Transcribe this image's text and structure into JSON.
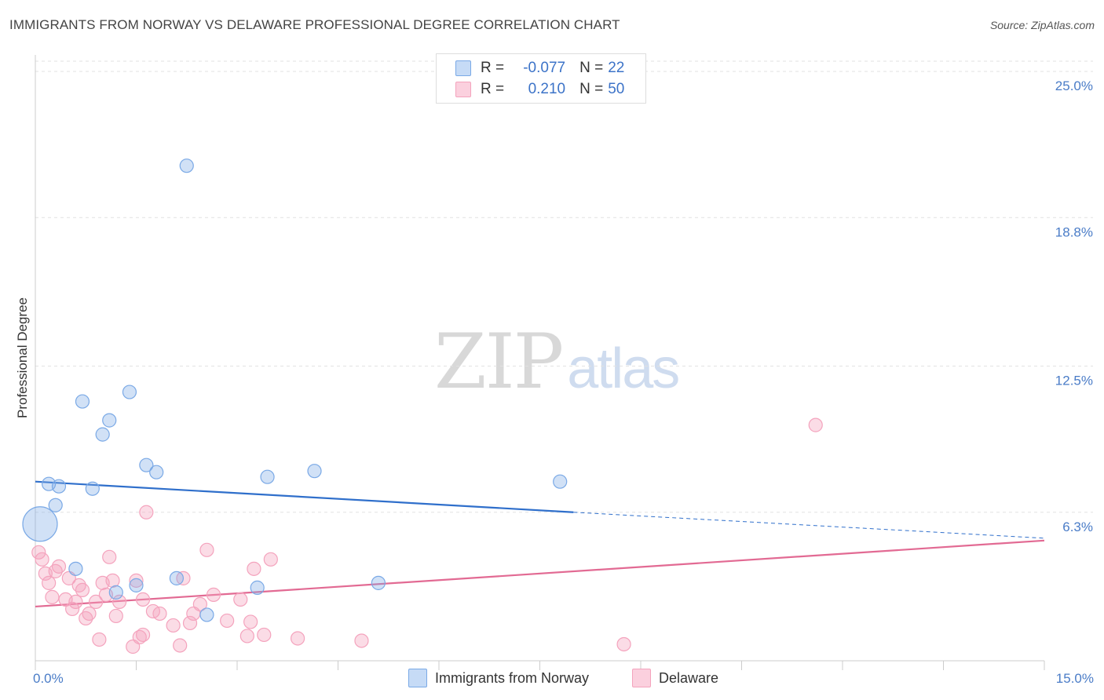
{
  "title": "IMMIGRANTS FROM NORWAY VS DELAWARE PROFESSIONAL DEGREE CORRELATION CHART",
  "source": "Source: ZipAtlas.com",
  "watermark": {
    "zip": "ZIP",
    "atlas": "atlas"
  },
  "legend": {
    "r_label": "R =",
    "n_label": "N =",
    "series": [
      {
        "r": "-0.077",
        "n": "22"
      },
      {
        "r": "0.210",
        "n": "50"
      }
    ]
  },
  "chart_data": {
    "type": "scatter",
    "title": "IMMIGRANTS FROM NORWAY VS DELAWARE PROFESSIONAL DEGREE CORRELATION CHART",
    "xlabel": "",
    "ylabel": "Professional Degree",
    "xlim": [
      0,
      15
    ],
    "ylim": [
      0,
      25.7
    ],
    "x_tick_labels": [
      "0.0%",
      "15.0%"
    ],
    "y_ticks": [
      6.3,
      12.5,
      18.8,
      25.0
    ],
    "y_tick_labels": [
      "6.3%",
      "12.5%",
      "18.8%",
      "25.0%"
    ],
    "grid": true,
    "colors": {
      "norway": "#7aa9e6",
      "norway_line": "#2f6fcb",
      "delaware": "#f4a3bd",
      "delaware_line": "#e26a93"
    },
    "series": [
      {
        "name": "Immigrants from Norway",
        "r": -0.077,
        "n": 22,
        "trend": {
          "x0": 0,
          "y0": 7.6,
          "x1": 8.0,
          "y1": 6.3,
          "dashed_to_x": 15,
          "dashed_to_y": 5.2
        },
        "points": [
          {
            "x": 0.0,
            "y": 5.8,
            "large": true
          },
          {
            "x": 0.2,
            "y": 7.5
          },
          {
            "x": 0.35,
            "y": 7.4
          },
          {
            "x": 0.3,
            "y": 6.6
          },
          {
            "x": 0.6,
            "y": 3.9
          },
          {
            "x": 0.7,
            "y": 11.0
          },
          {
            "x": 0.85,
            "y": 7.3
          },
          {
            "x": 1.0,
            "y": 9.6
          },
          {
            "x": 1.1,
            "y": 10.2
          },
          {
            "x": 1.4,
            "y": 11.4
          },
          {
            "x": 1.65,
            "y": 8.3
          },
          {
            "x": 1.8,
            "y": 8.0
          },
          {
            "x": 1.5,
            "y": 3.2
          },
          {
            "x": 1.2,
            "y": 2.9
          },
          {
            "x": 2.1,
            "y": 3.5
          },
          {
            "x": 2.25,
            "y": 21.0
          },
          {
            "x": 2.55,
            "y": 1.95
          },
          {
            "x": 3.45,
            "y": 7.8
          },
          {
            "x": 3.3,
            "y": 3.1
          },
          {
            "x": 4.15,
            "y": 8.05
          },
          {
            "x": 5.1,
            "y": 3.3
          },
          {
            "x": 7.8,
            "y": 7.6
          }
        ]
      },
      {
        "name": "Delaware",
        "r": 0.21,
        "n": 50,
        "trend": {
          "x0": 0,
          "y0": 2.3,
          "x1": 15,
          "y1": 5.1
        },
        "points": [
          {
            "x": 0.05,
            "y": 4.6
          },
          {
            "x": 0.1,
            "y": 4.3
          },
          {
            "x": 0.15,
            "y": 3.7
          },
          {
            "x": 0.2,
            "y": 3.3
          },
          {
            "x": 0.25,
            "y": 2.7
          },
          {
            "x": 0.35,
            "y": 4.0
          },
          {
            "x": 0.3,
            "y": 3.8
          },
          {
            "x": 0.45,
            "y": 2.6
          },
          {
            "x": 0.5,
            "y": 3.5
          },
          {
            "x": 0.55,
            "y": 2.2
          },
          {
            "x": 0.6,
            "y": 2.5
          },
          {
            "x": 0.65,
            "y": 3.2
          },
          {
            "x": 0.7,
            "y": 3.0
          },
          {
            "x": 0.75,
            "y": 1.8
          },
          {
            "x": 0.8,
            "y": 2.0
          },
          {
            "x": 0.9,
            "y": 2.5
          },
          {
            "x": 0.95,
            "y": 0.9
          },
          {
            "x": 1.0,
            "y": 3.3
          },
          {
            "x": 1.05,
            "y": 2.8
          },
          {
            "x": 1.1,
            "y": 4.4
          },
          {
            "x": 1.15,
            "y": 3.4
          },
          {
            "x": 1.2,
            "y": 1.9
          },
          {
            "x": 1.25,
            "y": 2.5
          },
          {
            "x": 1.45,
            "y": 0.6
          },
          {
            "x": 1.5,
            "y": 3.4
          },
          {
            "x": 1.55,
            "y": 1.0
          },
          {
            "x": 1.6,
            "y": 2.6
          },
          {
            "x": 1.65,
            "y": 6.3
          },
          {
            "x": 1.75,
            "y": 2.1
          },
          {
            "x": 1.85,
            "y": 2.0
          },
          {
            "x": 2.05,
            "y": 1.5
          },
          {
            "x": 2.15,
            "y": 0.65
          },
          {
            "x": 2.2,
            "y": 3.5
          },
          {
            "x": 2.3,
            "y": 1.6
          },
          {
            "x": 2.35,
            "y": 2.0
          },
          {
            "x": 2.45,
            "y": 2.4
          },
          {
            "x": 2.55,
            "y": 4.7
          },
          {
            "x": 2.65,
            "y": 2.8
          },
          {
            "x": 2.85,
            "y": 1.7
          },
          {
            "x": 3.05,
            "y": 2.6
          },
          {
            "x": 3.15,
            "y": 1.05
          },
          {
            "x": 3.2,
            "y": 1.65
          },
          {
            "x": 3.25,
            "y": 3.9
          },
          {
            "x": 3.4,
            "y": 1.1
          },
          {
            "x": 3.5,
            "y": 4.3
          },
          {
            "x": 3.9,
            "y": 0.95
          },
          {
            "x": 4.85,
            "y": 0.85
          },
          {
            "x": 8.75,
            "y": 0.7
          },
          {
            "x": 11.6,
            "y": 10.0
          },
          {
            "x": 1.6,
            "y": 1.1
          }
        ]
      }
    ],
    "legend": [
      "Immigrants from Norway",
      "Delaware"
    ]
  }
}
